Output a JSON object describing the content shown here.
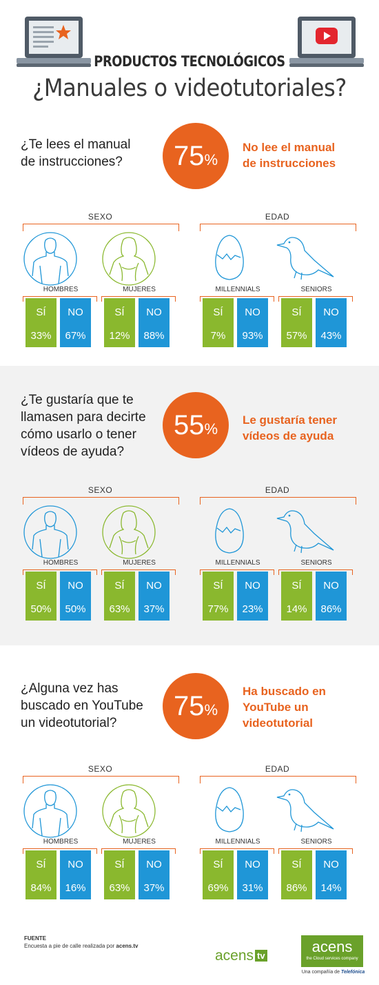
{
  "header": {
    "title": "PRODUCTOS TECNOLÓGICOS",
    "subtitle": "¿Manuales o videotutoriales?"
  },
  "sections": [
    {
      "question_lines": [
        "¿Te lees el manual",
        "de instrucciones?"
      ],
      "percent": "75",
      "percent_sign": "%",
      "answer_lines": [
        "No lee el manual",
        "de instrucciones"
      ],
      "sexo_label": "SEXO",
      "edad_label": "EDAD",
      "groups": [
        {
          "label": "HOMBRES",
          "si": "33%",
          "no": "67%"
        },
        {
          "label": "MUJERES",
          "si": "12%",
          "no": "88%"
        },
        {
          "label": "MILLENNIALS",
          "si": "7%",
          "no": "93%"
        },
        {
          "label": "SENIORS",
          "si": "57%",
          "no": "43%"
        }
      ]
    },
    {
      "question_lines": [
        "¿Te gustaría que te",
        "llamasen para decirte",
        "cómo usarlo o tener",
        "vídeos de ayuda?"
      ],
      "percent": "55",
      "percent_sign": "%",
      "answer_lines": [
        "Le gustaría tener",
        "vídeos de ayuda"
      ],
      "sexo_label": "SEXO",
      "edad_label": "EDAD",
      "groups": [
        {
          "label": "HOMBRES",
          "si": "50%",
          "no": "50%"
        },
        {
          "label": "MUJERES",
          "si": "63%",
          "no": "37%"
        },
        {
          "label": "MILLENNIALS",
          "si": "77%",
          "no": "23%"
        },
        {
          "label": "SENIORS",
          "si": "14%",
          "no": "86%"
        }
      ]
    },
    {
      "question_lines": [
        "¿Alguna vez has",
        "buscado en YouTube",
        "un videotutorial?"
      ],
      "percent": "75",
      "percent_sign": "%",
      "answer_lines": [
        "Ha buscado en",
        "YouTube un",
        "videotutorial"
      ],
      "sexo_label": "SEXO",
      "edad_label": "EDAD",
      "groups": [
        {
          "label": "HOMBRES",
          "si": "84%",
          "no": "16%"
        },
        {
          "label": "MUJERES",
          "si": "63%",
          "no": "37%"
        },
        {
          "label": "MILLENNIALS",
          "si": "69%",
          "no": "31%"
        },
        {
          "label": "SENIORS",
          "si": "86%",
          "no": "14%"
        }
      ]
    }
  ],
  "labels": {
    "si": "SÍ",
    "no": "NO"
  },
  "footer": {
    "title": "FUENTE",
    "text": "Encuesta a pie de calle realizada por ",
    "source": "acens.tv",
    "logo_tv": "acens",
    "logo_tv_badge": "tv",
    "logo_main": "acens",
    "logo_main_tag": "the Cloud services company",
    "logo_main_sub": "Una compañía de",
    "logo_main_brand": "Telefónica"
  },
  "colors": {
    "orange": "#e8631f",
    "green": "#8ab82e",
    "blue": "#1f96d7",
    "gray_band": "#f2f2f2"
  },
  "icons": [
    "laptop-document-icon",
    "laptop-youtube-icon",
    "man-icon",
    "woman-icon",
    "egg-icon",
    "bird-icon"
  ]
}
